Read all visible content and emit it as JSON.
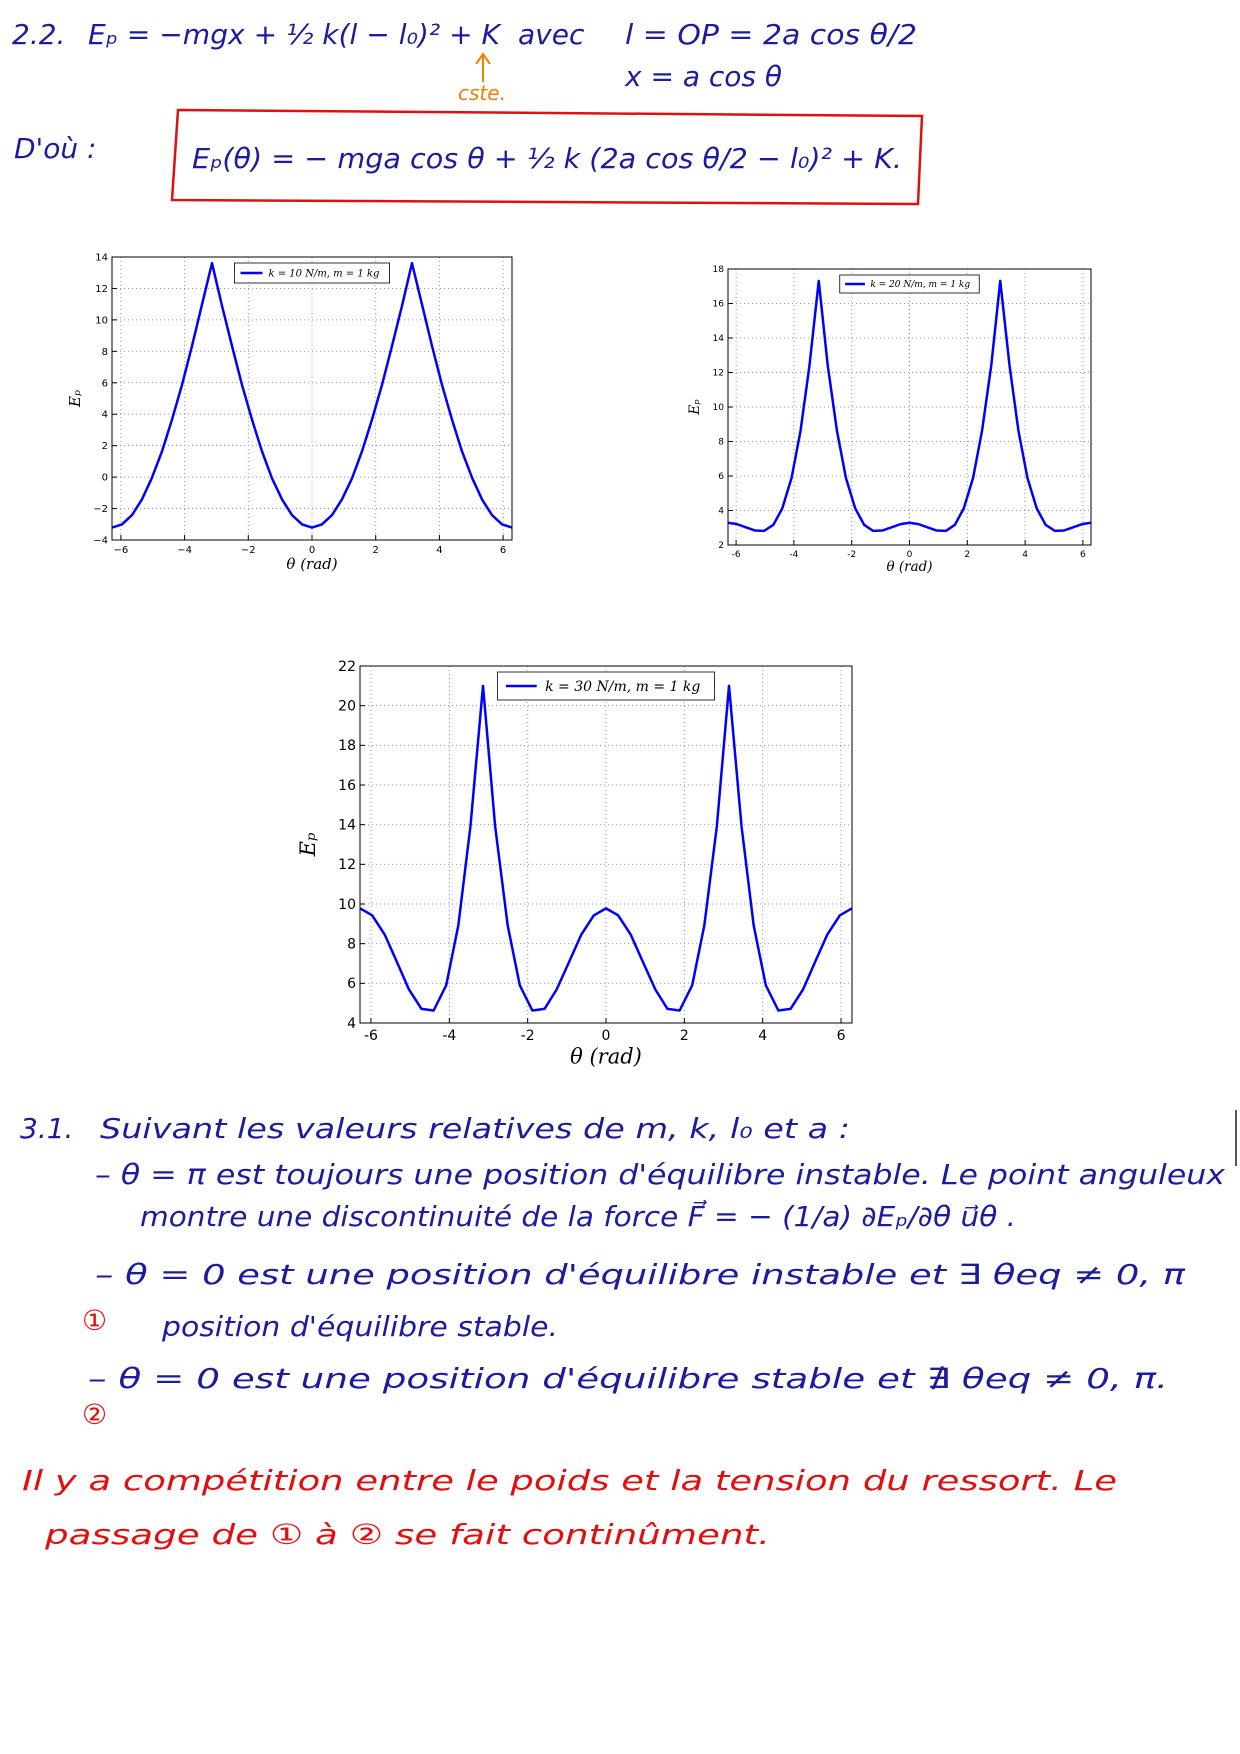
{
  "section_2_2": {
    "number": "2.2.",
    "equation": "Eₚ = −mgx + ½ k(l − l₀)² + K",
    "connector": "avec",
    "length_relation": "l = OP = 2a cos θ/2",
    "x_relation": "x = a cos θ",
    "constant_note": "cste.",
    "conclusion_label": "D'où :",
    "boxed_result": "Eₚ(θ) = − mga cos θ + ½ k (2a cos θ/2 − l₀)² + K."
  },
  "chart_data": [
    {
      "type": "line",
      "x": [
        -6.28,
        -5.97,
        -5.65,
        -5.34,
        -5.03,
        -4.71,
        -4.4,
        -4.08,
        -3.77,
        -3.46,
        -3.14,
        -2.83,
        -2.51,
        -2.2,
        -1.88,
        -1.57,
        -1.26,
        -0.94,
        -0.63,
        -0.31,
        0,
        0.31,
        0.63,
        0.94,
        1.26,
        1.57,
        1.88,
        2.2,
        2.51,
        2.83,
        3.14,
        3.46,
        3.77,
        4.08,
        4.4,
        4.71,
        5.03,
        5.34,
        5.65,
        5.97,
        6.28
      ],
      "series": [
        {
          "name": "k = 10 N/m, m = 1 kg",
          "color": "#0000ff",
          "values": [
            -3.21,
            -3.01,
            -2.41,
            -1.42,
            -0.06,
            1.64,
            3.63,
            5.88,
            8.33,
            10.93,
            13.61,
            10.93,
            8.33,
            5.88,
            3.63,
            1.64,
            -0.06,
            -1.42,
            -2.41,
            -3.01,
            -3.21,
            -3.01,
            -2.41,
            -1.42,
            -0.06,
            1.64,
            3.63,
            5.88,
            8.33,
            10.93,
            13.61,
            10.93,
            8.33,
            5.88,
            3.63,
            1.64,
            -0.06,
            -1.42,
            -2.41,
            -3.01,
            -3.21
          ]
        }
      ],
      "xlim": [
        -6.28,
        6.28
      ],
      "ylim": [
        -4,
        14
      ],
      "xticks": [
        {
          "value": -6,
          "label": "−6"
        },
        {
          "value": -4,
          "label": "−4"
        },
        {
          "value": -2,
          "label": "−2"
        },
        0,
        2,
        4,
        6
      ],
      "yticks": [
        {
          "value": -4,
          "label": "−4"
        },
        {
          "value": -2,
          "label": "−2"
        },
        0,
        2,
        4,
        6,
        8,
        10,
        12,
        14
      ],
      "xlabel": "θ (rad)",
      "ylabel": "Eₚ",
      "grid": true,
      "legend": "upper center"
    },
    {
      "type": "line",
      "x": [
        -6.28,
        -5.97,
        -5.65,
        -5.34,
        -5.03,
        -4.71,
        -4.4,
        -4.08,
        -3.77,
        -3.46,
        -3.14,
        -2.83,
        -2.51,
        -2.2,
        -1.88,
        -1.57,
        -1.26,
        -0.94,
        -0.63,
        -0.31,
        0,
        0.31,
        0.63,
        0.94,
        1.26,
        1.57,
        1.88,
        2.2,
        2.51,
        2.83,
        3.14,
        3.46,
        3.77,
        4.08,
        4.4,
        4.71,
        5.03,
        5.34,
        5.65,
        5.97,
        6.28
      ],
      "series": [
        {
          "name": "k = 20 N/m, m = 1 kg",
          "color": "#0000ff",
          "values": [
            3.29,
            3.21,
            3.02,
            2.84,
            2.82,
            3.17,
            4.13,
            5.89,
            8.62,
            12.42,
            17.31,
            12.42,
            8.62,
            5.89,
            4.13,
            3.17,
            2.82,
            2.84,
            3.02,
            3.21,
            3.29,
            3.21,
            3.02,
            2.84,
            2.82,
            3.17,
            4.13,
            5.89,
            8.62,
            12.42,
            17.31,
            12.42,
            8.62,
            5.89,
            4.13,
            3.17,
            2.82,
            2.84,
            3.02,
            3.21,
            3.29
          ]
        }
      ],
      "xlim": [
        -6.28,
        6.28
      ],
      "ylim": [
        2,
        18
      ],
      "xticks": [
        -6,
        -4,
        -2,
        0,
        2,
        4,
        6
      ],
      "yticks": [
        2,
        4,
        6,
        8,
        10,
        12,
        14,
        16,
        18
      ],
      "xlabel": "θ (rad)",
      "ylabel": "Eₚ",
      "grid": true,
      "legend": "upper center"
    },
    {
      "type": "line",
      "x": [
        -6.28,
        -5.97,
        -5.65,
        -5.34,
        -5.03,
        -4.71,
        -4.4,
        -4.08,
        -3.77,
        -3.46,
        -3.14,
        -2.83,
        -2.51,
        -2.2,
        -1.88,
        -1.57,
        -1.26,
        -0.94,
        -0.63,
        -0.31,
        0,
        0.31,
        0.63,
        0.94,
        1.26,
        1.57,
        1.88,
        2.2,
        2.51,
        2.83,
        3.14,
        3.46,
        3.77,
        4.08,
        4.4,
        4.71,
        5.03,
        5.34,
        5.65,
        5.97,
        6.28
      ],
      "series": [
        {
          "name": "k = 30 N/m, m = 1 kg",
          "color": "#0000ff",
          "values": [
            9.78,
            9.43,
            8.46,
            7.09,
            5.69,
            4.71,
            4.63,
            5.9,
            8.92,
            13.92,
            21.0,
            13.92,
            8.92,
            5.9,
            4.63,
            4.71,
            5.69,
            7.09,
            8.46,
            9.43,
            9.78,
            9.43,
            8.46,
            7.09,
            5.69,
            4.71,
            4.63,
            5.9,
            8.92,
            13.92,
            21.0,
            13.92,
            8.92,
            5.9,
            4.63,
            4.71,
            5.69,
            7.09,
            8.46,
            9.43,
            9.78
          ]
        }
      ],
      "xlim": [
        -6.28,
        6.28
      ],
      "ylim": [
        4,
        22
      ],
      "xticks": [
        -6,
        -4,
        -2,
        0,
        2,
        4,
        6
      ],
      "yticks": [
        4,
        6,
        8,
        10,
        12,
        14,
        16,
        18,
        20,
        22
      ],
      "xlabel": "θ (rad)",
      "ylabel": "Eₚ",
      "grid": true,
      "legend": "upper center"
    }
  ],
  "section_3_1": {
    "number": "3.1.",
    "intro": "Suivant les valeurs relatives de m, k, l₀ et a :",
    "case_pi": "– θ = π est toujours une position d'équilibre instable. Le point anguleux",
    "case_pi_cont": "montre une discontinuité de la force F⃗ = − (1/a) ∂Eₚ/∂θ u⃗θ .",
    "case_1": "– θ = 0 est une position d'équilibre instable et ∃ θeq ≠ 0, π",
    "case_1_marker": "①",
    "case_1_cont": "position d'équilibre stable.",
    "case_2": "– θ = 0 est une position d'équilibre stable et ∄ θeq ≠ 0, π.",
    "case_2_marker": "②",
    "remark_1": "Il y a compétition entre le poids et la tension du ressort. Le",
    "remark_2": "passage de ① à ② se fait continûment."
  }
}
